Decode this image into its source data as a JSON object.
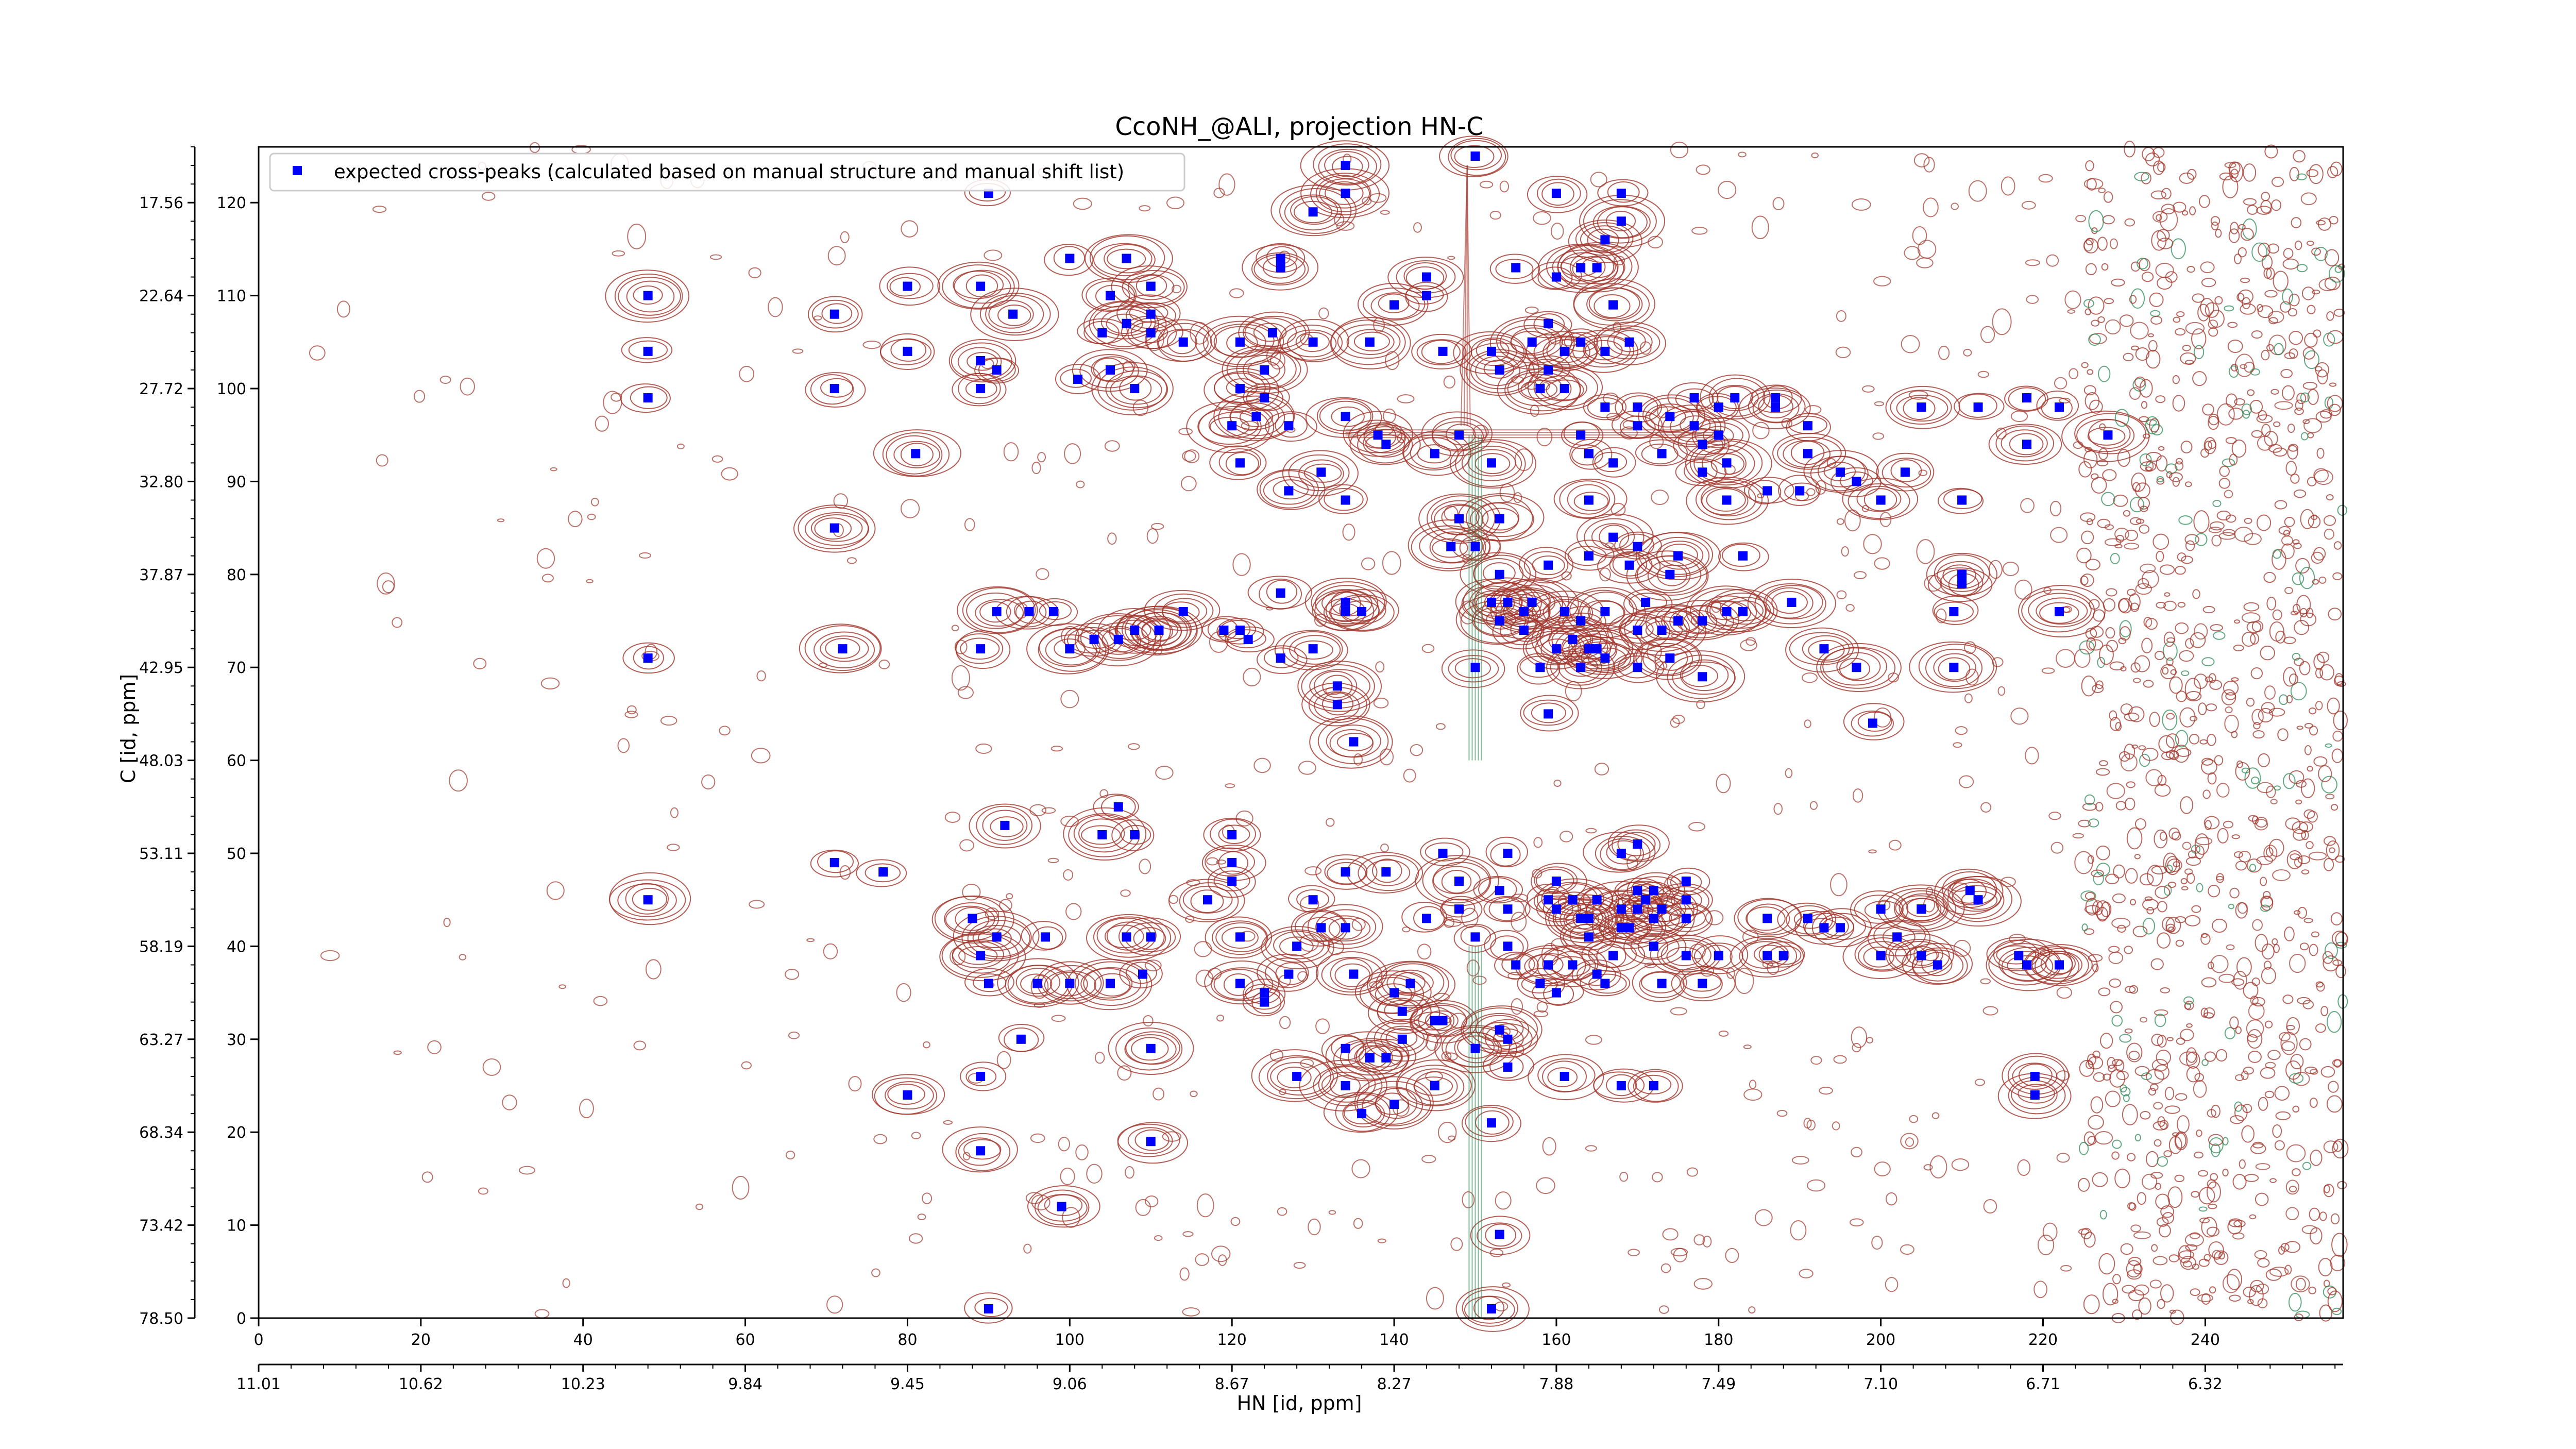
{
  "chart_data": {
    "type": "scatter",
    "title": "CcoNH_@ALI, projection HN-C",
    "xlabel": "HN [id, ppm]",
    "ylabel": "C [id, ppm]",
    "xlim": [
      0,
      257
    ],
    "ylim": [
      0,
      126
    ],
    "x_ticks": [
      0,
      20,
      40,
      60,
      80,
      100,
      120,
      140,
      160,
      180,
      200,
      220,
      240
    ],
    "x_ticks_ppm": [
      "11.01",
      "10.62",
      "10.23",
      "9.84",
      "9.45",
      "9.06",
      "8.67",
      "8.27",
      "7.88",
      "7.49",
      "7.10",
      "6.71",
      "6.32"
    ],
    "y_ticks": [
      0,
      10,
      20,
      30,
      40,
      50,
      60,
      70,
      80,
      90,
      100,
      110,
      120
    ],
    "y_ticks_ppm": [
      "78.50",
      "73.42",
      "68.34",
      "63.27",
      "58.19",
      "53.11",
      "48.03",
      "42.95",
      "37.87",
      "32.80",
      "27.72",
      "22.64",
      "17.56"
    ],
    "legend": {
      "position": "top-left",
      "label": "expected cross-peaks (calculated based on manual structure and manual shift list)"
    },
    "colors": {
      "peak_marker": "#0000ff",
      "positive_contour": "#a0342a",
      "negative_contour": "#2e8b57",
      "axis": "#000000"
    },
    "series": [
      {
        "name": "expected cross-peaks (calculated based on manual structure and manual shift list)",
        "points": [
          [
            150,
            125
          ],
          [
            134,
            124
          ],
          [
            134,
            121
          ],
          [
            90,
            121
          ],
          [
            130,
            119
          ],
          [
            160,
            121
          ],
          [
            168,
            121
          ],
          [
            168,
            118
          ],
          [
            166,
            116
          ],
          [
            165,
            113
          ],
          [
            163,
            113
          ],
          [
            126,
            114
          ],
          [
            126,
            113
          ],
          [
            100,
            114
          ],
          [
            107,
            114
          ],
          [
            155,
            113
          ],
          [
            144,
            112
          ],
          [
            160,
            112
          ],
          [
            110,
            111
          ],
          [
            105,
            110
          ],
          [
            48,
            110
          ],
          [
            80,
            111
          ],
          [
            89,
            111
          ],
          [
            144,
            110
          ],
          [
            140,
            109
          ],
          [
            110,
            108
          ],
          [
            71,
            108
          ],
          [
            93,
            108
          ],
          [
            107,
            107
          ],
          [
            110,
            106
          ],
          [
            114,
            105
          ],
          [
            104,
            106
          ],
          [
            125,
            106
          ],
          [
            137,
            105
          ],
          [
            159,
            107
          ],
          [
            167,
            109
          ],
          [
            130,
            105
          ],
          [
            121,
            105
          ],
          [
            152,
            104
          ],
          [
            146,
            104
          ],
          [
            163,
            105
          ],
          [
            157,
            105
          ],
          [
            153,
            102
          ],
          [
            161,
            104
          ],
          [
            166,
            104
          ],
          [
            169,
            105
          ],
          [
            48,
            104
          ],
          [
            80,
            104
          ],
          [
            89,
            103
          ],
          [
            159,
            102
          ],
          [
            91,
            102
          ],
          [
            105,
            102
          ],
          [
            124,
            102
          ],
          [
            121,
            100
          ],
          [
            48,
            99
          ],
          [
            71,
            100
          ],
          [
            101,
            101
          ],
          [
            89,
            100
          ],
          [
            108,
            100
          ],
          [
            124,
            99
          ],
          [
            161,
            100
          ],
          [
            166,
            98
          ],
          [
            170,
            98
          ],
          [
            174,
            97
          ],
          [
            177,
            99
          ],
          [
            182,
            99
          ],
          [
            187,
            98
          ],
          [
            187,
            99
          ],
          [
            170,
            96
          ],
          [
            177,
            96
          ],
          [
            180,
            98
          ],
          [
            158,
            100
          ],
          [
            123,
            97
          ],
          [
            134,
            97
          ],
          [
            138,
            95
          ],
          [
            148,
            95
          ],
          [
            163,
            95
          ],
          [
            178,
            94
          ],
          [
            180,
            95
          ],
          [
            191,
            96
          ],
          [
            205,
            98
          ],
          [
            212,
            98
          ],
          [
            218,
            99
          ],
          [
            222,
            98
          ],
          [
            228,
            95
          ],
          [
            218,
            94
          ],
          [
            120,
            96
          ],
          [
            127,
            96
          ],
          [
            139,
            94
          ],
          [
            145,
            93
          ],
          [
            164,
            93
          ],
          [
            173,
            93
          ],
          [
            181,
            92
          ],
          [
            203,
            91
          ],
          [
            81,
            93
          ],
          [
            121,
            92
          ],
          [
            131,
            91
          ],
          [
            152,
            92
          ],
          [
            167,
            92
          ],
          [
            191,
            93
          ],
          [
            195,
            91
          ],
          [
            178,
            91
          ],
          [
            186,
            89
          ],
          [
            200,
            88
          ],
          [
            210,
            88
          ],
          [
            127,
            89
          ],
          [
            134,
            88
          ],
          [
            148,
            86
          ],
          [
            153,
            86
          ],
          [
            164,
            88
          ],
          [
            181,
            88
          ],
          [
            190,
            89
          ],
          [
            197,
            90
          ],
          [
            71,
            85
          ],
          [
            147,
            83
          ],
          [
            150,
            83
          ],
          [
            167,
            84
          ],
          [
            170,
            83
          ],
          [
            164,
            82
          ],
          [
            159,
            81
          ],
          [
            153,
            80
          ],
          [
            152,
            77
          ],
          [
            175,
            82
          ],
          [
            183,
            82
          ],
          [
            169,
            81
          ],
          [
            174,
            80
          ],
          [
            210,
            80
          ],
          [
            210,
            79
          ],
          [
            91,
            76
          ],
          [
            95,
            76
          ],
          [
            98,
            76
          ],
          [
            108,
            74
          ],
          [
            111,
            74
          ],
          [
            114,
            76
          ],
          [
            121,
            74
          ],
          [
            122,
            73
          ],
          [
            126,
            71
          ],
          [
            126,
            78
          ],
          [
            134,
            77
          ],
          [
            134,
            76
          ],
          [
            136,
            76
          ],
          [
            156,
            76
          ],
          [
            153,
            75
          ],
          [
            154,
            77
          ],
          [
            157,
            77
          ],
          [
            161,
            76
          ],
          [
            163,
            75
          ],
          [
            156,
            74
          ],
          [
            160,
            72
          ],
          [
            164,
            72
          ],
          [
            166,
            76
          ],
          [
            171,
            77
          ],
          [
            170,
            74
          ],
          [
            170,
            70
          ],
          [
            175,
            75
          ],
          [
            178,
            75
          ],
          [
            181,
            76
          ],
          [
            173,
            74
          ],
          [
            183,
            76
          ],
          [
            189,
            77
          ],
          [
            209,
            76
          ],
          [
            222,
            76
          ],
          [
            106,
            73
          ],
          [
            103,
            73
          ],
          [
            111,
            74
          ],
          [
            119,
            74
          ],
          [
            130,
            72
          ],
          [
            72,
            72
          ],
          [
            48,
            71
          ],
          [
            89,
            72
          ],
          [
            100,
            72
          ],
          [
            162,
            73
          ],
          [
            165,
            72
          ],
          [
            166,
            71
          ],
          [
            174,
            71
          ],
          [
            163,
            70
          ],
          [
            158,
            70
          ],
          [
            150,
            70
          ],
          [
            178,
            69
          ],
          [
            193,
            72
          ],
          [
            197,
            70
          ],
          [
            209,
            70
          ],
          [
            133,
            68
          ],
          [
            133,
            66
          ],
          [
            135,
            62
          ],
          [
            199,
            64
          ],
          [
            159,
            65
          ],
          [
            106,
            55
          ],
          [
            104,
            52
          ],
          [
            92,
            53
          ],
          [
            71,
            49
          ],
          [
            77,
            48
          ],
          [
            108,
            52
          ],
          [
            120,
            52
          ],
          [
            120,
            49
          ],
          [
            120,
            47
          ],
          [
            117,
            45
          ],
          [
            130,
            45
          ],
          [
            134,
            48
          ],
          [
            139,
            48
          ],
          [
            146,
            50
          ],
          [
            148,
            47
          ],
          [
            154,
            50
          ],
          [
            153,
            46
          ],
          [
            160,
            47
          ],
          [
            168,
            50
          ],
          [
            170,
            51
          ],
          [
            159,
            45
          ],
          [
            162,
            45
          ],
          [
            165,
            45
          ],
          [
            172,
            46
          ],
          [
            176,
            47
          ],
          [
            148,
            44
          ],
          [
            154,
            44
          ],
          [
            160,
            44
          ],
          [
            164,
            43
          ],
          [
            163,
            43
          ],
          [
            168,
            44
          ],
          [
            170,
            44
          ],
          [
            171,
            45
          ],
          [
            173,
            44
          ],
          [
            176,
            45
          ],
          [
            172,
            43
          ],
          [
            176,
            43
          ],
          [
            170,
            46
          ],
          [
            164,
            41
          ],
          [
            168,
            42
          ],
          [
            169,
            42
          ],
          [
            186,
            43
          ],
          [
            191,
            43
          ],
          [
            205,
            44
          ],
          [
            202,
            41
          ],
          [
            205,
            44
          ],
          [
            211,
            46
          ],
          [
            212,
            45
          ],
          [
            48,
            45
          ],
          [
            88,
            43
          ],
          [
            91,
            41
          ],
          [
            97,
            41
          ],
          [
            107,
            41
          ],
          [
            110,
            41
          ],
          [
            121,
            41
          ],
          [
            128,
            40
          ],
          [
            131,
            42
          ],
          [
            134,
            42
          ],
          [
            144,
            43
          ],
          [
            150,
            41
          ],
          [
            154,
            40
          ],
          [
            155,
            38
          ],
          [
            159,
            38
          ],
          [
            162,
            38
          ],
          [
            165,
            37
          ],
          [
            167,
            39
          ],
          [
            172,
            40
          ],
          [
            176,
            39
          ],
          [
            180,
            39
          ],
          [
            188,
            39
          ],
          [
            193,
            42
          ],
          [
            200,
            39
          ],
          [
            205,
            39
          ],
          [
            217,
            39
          ],
          [
            218,
            38
          ],
          [
            222,
            38
          ],
          [
            89,
            39
          ],
          [
            109,
            37
          ],
          [
            105,
            36
          ],
          [
            96,
            36
          ],
          [
            100,
            36
          ],
          [
            90,
            36
          ],
          [
            127,
            37
          ],
          [
            142,
            36
          ],
          [
            158,
            36
          ],
          [
            160,
            35
          ],
          [
            166,
            36
          ],
          [
            173,
            36
          ],
          [
            178,
            36
          ],
          [
            186,
            39
          ],
          [
            195,
            42
          ],
          [
            200,
            44
          ],
          [
            222,
            38
          ],
          [
            207,
            38
          ],
          [
            121,
            36
          ],
          [
            124,
            35
          ],
          [
            124,
            34
          ],
          [
            135,
            37
          ],
          [
            140,
            35
          ],
          [
            141,
            33
          ],
          [
            145,
            32
          ],
          [
            146,
            32
          ],
          [
            141,
            30
          ],
          [
            139,
            28
          ],
          [
            137,
            28
          ],
          [
            134,
            29
          ],
          [
            150,
            29
          ],
          [
            153,
            31
          ],
          [
            154,
            30
          ],
          [
            154,
            27
          ],
          [
            161,
            26
          ],
          [
            168,
            25
          ],
          [
            172,
            25
          ],
          [
            219,
            26
          ],
          [
            219,
            24
          ],
          [
            94,
            30
          ],
          [
            110,
            29
          ],
          [
            80,
            24
          ],
          [
            89,
            26
          ],
          [
            128,
            26
          ],
          [
            134,
            25
          ],
          [
            145,
            25
          ],
          [
            136,
            22
          ],
          [
            140,
            23
          ],
          [
            89,
            18
          ],
          [
            110,
            19
          ],
          [
            152,
            21
          ],
          [
            99,
            12
          ],
          [
            153,
            9
          ],
          [
            90,
            1
          ],
          [
            152,
            1
          ]
        ]
      }
    ]
  }
}
